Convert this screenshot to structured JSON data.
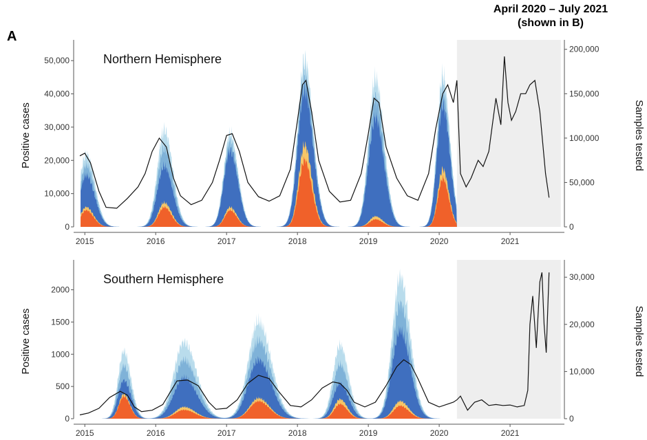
{
  "figure": {
    "panel_letter": "A",
    "shaded_annotation_line1": "April 2020 – July 2021",
    "shaded_annotation_line2": "(shown in B)"
  },
  "colors": {
    "influenza_a_light": "#b9dcec",
    "influenza_a_mid": "#7fb2d8",
    "influenza_a_dark": "#3f6fbf",
    "influenza_b_yellow": "#f6c667",
    "influenza_b_orange": "#f0612a",
    "samples_line": "#111111",
    "shade": "#eeeeee"
  },
  "chart_data": [
    {
      "type": "area",
      "title": "Northern Hemisphere",
      "xlabel": "",
      "ylabel": "Positive cases",
      "y2label": "Samples tested",
      "x_ticks": [
        "2015",
        "2016",
        "2017",
        "2018",
        "2019",
        "2020",
        "2021"
      ],
      "y_ticks": [
        "0",
        "10,000",
        "20,000",
        "30,000",
        "40,000",
        "50,000"
      ],
      "y2_ticks": [
        "0",
        "50,000",
        "100,000",
        "150,000",
        "200,000"
      ],
      "xlim": [
        2014.92,
        2021.65
      ],
      "ylim": [
        0,
        55000
      ],
      "y2lim": [
        0,
        206000
      ],
      "shaded_region": [
        2020.25,
        2021.58
      ],
      "grid": false,
      "seasons": [
        {
          "peak": 2015.02,
          "total": 24000,
          "dark": 17000,
          "b": 6500,
          "bOrange": 5500,
          "width": 0.12
        },
        {
          "peak": 2016.12,
          "total": 32000,
          "dark": 20000,
          "b": 8000,
          "bOrange": 6500,
          "width": 0.12
        },
        {
          "peak": 2017.05,
          "total": 31000,
          "dark": 25000,
          "b": 6500,
          "bOrange": 5500,
          "width": 0.11
        },
        {
          "peak": 2018.1,
          "total": 55000,
          "dark": 45000,
          "b": 27000,
          "bOrange": 22000,
          "width": 0.12
        },
        {
          "peak": 2019.1,
          "total": 49000,
          "dark": 36000,
          "b": 3500,
          "bOrange": 2500,
          "width": 0.12
        },
        {
          "peak": 2020.05,
          "total": 50000,
          "dark": 40000,
          "b": 19000,
          "bOrange": 16000,
          "width": 0.1
        }
      ],
      "samples_tested": {
        "x": [
          2014.93,
          2015.0,
          2015.08,
          2015.2,
          2015.3,
          2015.45,
          2015.6,
          2015.75,
          2015.85,
          2015.95,
          2016.05,
          2016.15,
          2016.25,
          2016.35,
          2016.5,
          2016.65,
          2016.8,
          2016.9,
          2017.0,
          2017.08,
          2017.18,
          2017.3,
          2017.45,
          2017.6,
          2017.75,
          2017.9,
          2018.0,
          2018.07,
          2018.12,
          2018.2,
          2018.3,
          2018.45,
          2018.6,
          2018.75,
          2018.9,
          2019.0,
          2019.08,
          2019.15,
          2019.25,
          2019.4,
          2019.55,
          2019.7,
          2019.85,
          2019.95,
          2020.05,
          2020.12,
          2020.2,
          2020.25,
          2020.3,
          2020.38,
          2020.45,
          2020.55,
          2020.62,
          2020.7,
          2020.8,
          2020.87,
          2020.92,
          2020.97,
          2021.02,
          2021.08,
          2021.15,
          2021.22,
          2021.28,
          2021.35,
          2021.42,
          2021.5,
          2021.55
        ],
        "y": [
          80000,
          83000,
          72000,
          40000,
          22000,
          21000,
          32000,
          45000,
          60000,
          85000,
          100000,
          90000,
          55000,
          35000,
          25000,
          30000,
          50000,
          75000,
          103000,
          105000,
          85000,
          50000,
          34000,
          29000,
          35000,
          65000,
          120000,
          160000,
          165000,
          130000,
          75000,
          40000,
          28000,
          30000,
          60000,
          105000,
          145000,
          140000,
          90000,
          55000,
          35000,
          30000,
          60000,
          110000,
          150000,
          160000,
          140000,
          165000,
          60000,
          45000,
          55000,
          75000,
          68000,
          85000,
          145000,
          115000,
          192000,
          140000,
          120000,
          130000,
          150000,
          150000,
          160000,
          165000,
          130000,
          60000,
          33000
        ]
      }
    },
    {
      "type": "area",
      "title": "Southern Hemisphere",
      "xlabel": "",
      "ylabel": "Positive cases",
      "y2label": "Samples tested",
      "x_ticks": [
        "2015",
        "2016",
        "2017",
        "2018",
        "2019",
        "2020",
        "2021"
      ],
      "y_ticks": [
        "0",
        "500",
        "1000",
        "1500",
        "2000"
      ],
      "y2_ticks": [
        "0",
        "10,000",
        "20,000",
        "30,000"
      ],
      "xlim": [
        2014.92,
        2021.65
      ],
      "ylim": [
        0,
        2400
      ],
      "y2lim": [
        0,
        32800
      ],
      "shaded_region": [
        2020.25,
        2021.58
      ],
      "grid": false,
      "seasons": [
        {
          "peak": 2015.55,
          "total": 1150,
          "dark": 650,
          "b": 420,
          "bOrange": 380,
          "width": 0.1
        },
        {
          "peak": 2016.4,
          "total": 1300,
          "dark": 700,
          "b": 200,
          "bOrange": 150,
          "width": 0.18
        },
        {
          "peak": 2017.45,
          "total": 1650,
          "dark": 1000,
          "b": 350,
          "bOrange": 300,
          "width": 0.18
        },
        {
          "peak": 2018.6,
          "total": 1250,
          "dark": 600,
          "b": 330,
          "bOrange": 250,
          "width": 0.12
        },
        {
          "peak": 2019.45,
          "total": 2400,
          "dark": 1500,
          "b": 300,
          "bOrange": 220,
          "width": 0.14
        }
      ],
      "samples_tested": {
        "x": [
          2014.93,
          2015.05,
          2015.2,
          2015.35,
          2015.5,
          2015.6,
          2015.7,
          2015.8,
          2015.95,
          2016.1,
          2016.3,
          2016.45,
          2016.6,
          2016.75,
          2016.85,
          2017.0,
          2017.15,
          2017.3,
          2017.45,
          2017.6,
          2017.75,
          2017.9,
          2018.05,
          2018.2,
          2018.35,
          2018.5,
          2018.6,
          2018.7,
          2018.8,
          2018.95,
          2019.1,
          2019.25,
          2019.4,
          2019.5,
          2019.6,
          2019.7,
          2019.85,
          2020.0,
          2020.1,
          2020.2,
          2020.25,
          2020.3,
          2020.4,
          2020.5,
          2020.6,
          2020.7,
          2020.8,
          2020.9,
          2021.0,
          2021.1,
          2021.2,
          2021.25,
          2021.28,
          2021.32,
          2021.37,
          2021.42,
          2021.45,
          2021.48,
          2021.51,
          2021.55
        ],
        "y": [
          800,
          1200,
          2200,
          4500,
          5800,
          5000,
          2500,
          1500,
          1800,
          3000,
          8000,
          8200,
          7000,
          3500,
          2000,
          2200,
          4000,
          7500,
          9200,
          8500,
          5500,
          2800,
          2500,
          4000,
          6500,
          7800,
          7500,
          6000,
          3500,
          2500,
          3500,
          7000,
          11000,
          12500,
          11500,
          8500,
          3500,
          2500,
          3000,
          3500,
          4000,
          4800,
          1800,
          3500,
          4000,
          2800,
          3000,
          2800,
          2900,
          2500,
          2800,
          6000,
          20000,
          26000,
          15000,
          29000,
          31000,
          20000,
          14000,
          31000
        ]
      }
    }
  ]
}
